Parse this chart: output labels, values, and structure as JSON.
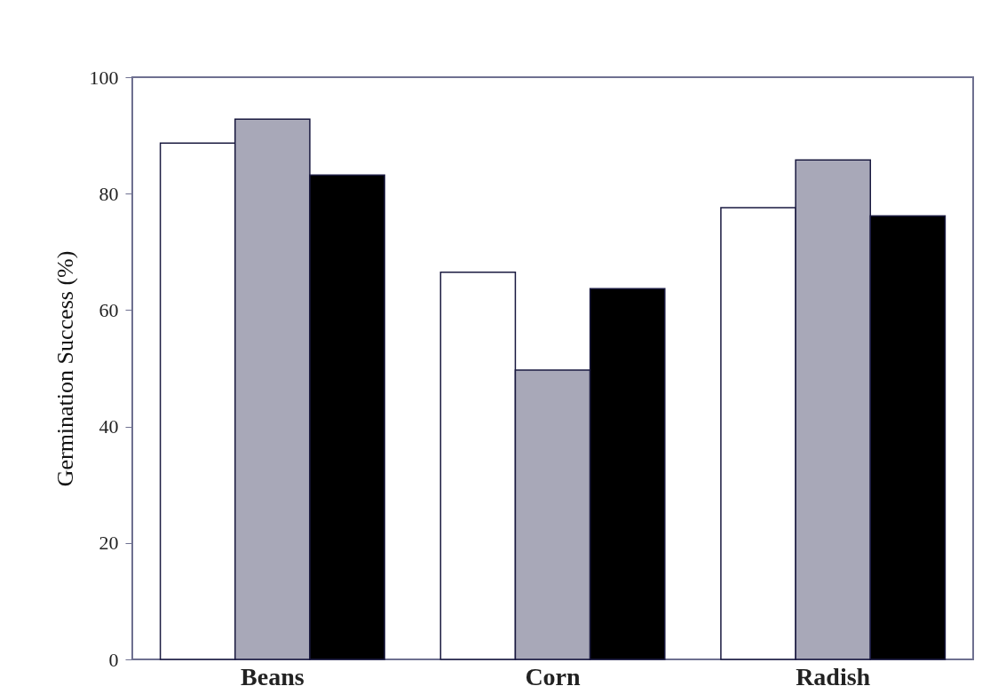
{
  "chart_data": {
    "type": "bar",
    "ylabel": "Germination Success (%)",
    "categories": [
      "Beans",
      "Corn",
      "Radish"
    ],
    "series": [
      {
        "color": "#ffffff",
        "values": [
          88.7,
          66.5,
          77.6
        ]
      },
      {
        "color": "#a8a8b8",
        "values": [
          92.8,
          49.7,
          85.8
        ]
      },
      {
        "color": "#000000",
        "values": [
          83.2,
          63.7,
          76.2
        ]
      }
    ],
    "ylim": [
      0,
      100
    ],
    "yticks": [
      0,
      20,
      40,
      60,
      80,
      100
    ],
    "grid": false,
    "legend": false
  }
}
